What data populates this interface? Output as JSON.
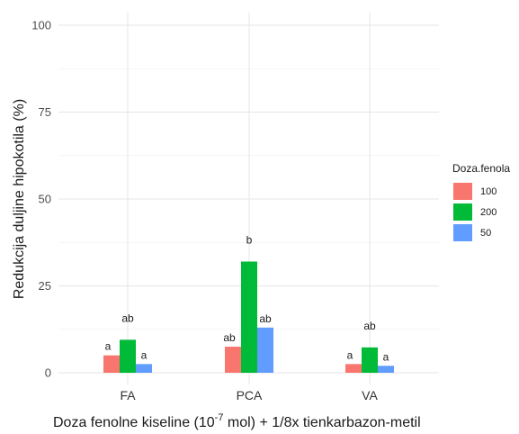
{
  "chart_data": {
    "type": "bar",
    "categories": [
      "FA",
      "PCA",
      "VA"
    ],
    "series": [
      {
        "name": "100",
        "color": "#F8766D",
        "values": [
          5.0,
          7.5,
          2.5
        ],
        "labels": [
          "a",
          "ab",
          "a"
        ]
      },
      {
        "name": "200",
        "color": "#00BA38",
        "values": [
          9.5,
          32.0,
          7.3
        ],
        "labels": [
          "ab",
          "b",
          "ab"
        ]
      },
      {
        "name": "50",
        "color": "#619CFF",
        "values": [
          2.5,
          13.0,
          2.0
        ],
        "labels": [
          "a",
          "ab",
          "a"
        ]
      }
    ],
    "ylim": [
      0,
      100
    ],
    "yticks": [
      0,
      25,
      50,
      75,
      100
    ],
    "ytick_labels": [
      "0",
      "25",
      "50",
      "75",
      "100"
    ],
    "ylabel": "Redukcija duljine hipokotila (%)",
    "xlabel": {
      "prefix": "Doza fenolne kiseline (10",
      "exponent": "-7",
      "suffix": " mol)  +  1/8x tienkarbazon-metil"
    },
    "legend": {
      "title": "Doza.fenola",
      "placement": "right"
    },
    "grid": true
  }
}
